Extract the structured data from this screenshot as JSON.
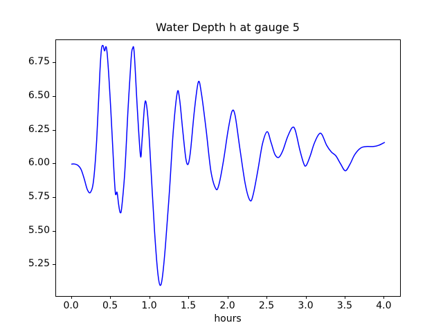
{
  "chart_data": {
    "type": "line",
    "title": "Water Depth h at gauge 5",
    "xlabel": "hours",
    "ylabel": "",
    "xlim": [
      -0.2,
      4.2
    ],
    "ylim": [
      5.02,
      6.92
    ],
    "xticks": [
      0.0,
      0.5,
      1.0,
      1.5,
      2.0,
      2.5,
      3.0,
      3.5,
      4.0
    ],
    "xtick_labels": [
      "0.0",
      "0.5",
      "1.0",
      "1.5",
      "2.0",
      "2.5",
      "3.0",
      "3.5",
      "4.0"
    ],
    "yticks": [
      5.25,
      5.5,
      5.75,
      6.0,
      6.25,
      6.5,
      6.75
    ],
    "ytick_labels": [
      "5.25",
      "5.50",
      "5.75",
      "6.00",
      "6.25",
      "6.50",
      "6.75"
    ],
    "grid": false,
    "legend": null,
    "line_color": "#0000ff",
    "line_width": 1.5,
    "series": [
      {
        "name": "h",
        "color": "#0000ff",
        "x": [
          0.0,
          0.04,
          0.08,
          0.12,
          0.16,
          0.2,
          0.24,
          0.28,
          0.32,
          0.36,
          0.38,
          0.4,
          0.42,
          0.44,
          0.46,
          0.5,
          0.54,
          0.56,
          0.58,
          0.6,
          0.62,
          0.64,
          0.68,
          0.72,
          0.76,
          0.78,
          0.8,
          0.84,
          0.88,
          0.9,
          0.93,
          0.95,
          0.98,
          1.02,
          1.06,
          1.1,
          1.13,
          1.16,
          1.2,
          1.25,
          1.3,
          1.35,
          1.38,
          1.42,
          1.46,
          1.49,
          1.52,
          1.57,
          1.62,
          1.66,
          1.72,
          1.78,
          1.84,
          1.88,
          1.94,
          2.0,
          2.05,
          2.09,
          2.15,
          2.22,
          2.28,
          2.32,
          2.38,
          2.44,
          2.5,
          2.55,
          2.6,
          2.65,
          2.7,
          2.76,
          2.82,
          2.86,
          2.92,
          2.97,
          3.0,
          3.05,
          3.1,
          3.16,
          3.2,
          3.26,
          3.32,
          3.38,
          3.44,
          3.5,
          3.56,
          3.62,
          3.7,
          3.78,
          3.86,
          3.93,
          4.0
        ],
        "y": [
          6.0,
          6.0,
          5.99,
          5.96,
          5.89,
          5.81,
          5.79,
          5.88,
          6.18,
          6.68,
          6.85,
          6.88,
          6.84,
          6.87,
          6.78,
          6.4,
          5.95,
          5.78,
          5.79,
          5.7,
          5.64,
          5.68,
          5.95,
          6.4,
          6.78,
          6.86,
          6.82,
          6.4,
          6.06,
          6.18,
          6.42,
          6.46,
          6.3,
          5.9,
          5.5,
          5.2,
          5.1,
          5.16,
          5.4,
          5.8,
          6.25,
          6.53,
          6.48,
          6.25,
          6.04,
          6.0,
          6.1,
          6.4,
          6.61,
          6.52,
          6.25,
          5.95,
          5.82,
          5.84,
          6.02,
          6.25,
          6.39,
          6.36,
          6.12,
          5.85,
          5.73,
          5.77,
          5.95,
          6.15,
          6.24,
          6.16,
          6.07,
          6.05,
          6.1,
          6.2,
          6.27,
          6.25,
          6.1,
          6.0,
          5.99,
          6.06,
          6.15,
          6.22,
          6.22,
          6.14,
          6.09,
          6.06,
          6.0,
          5.95,
          6.0,
          6.07,
          6.12,
          6.13,
          6.13,
          6.14,
          6.16
        ]
      }
    ]
  }
}
